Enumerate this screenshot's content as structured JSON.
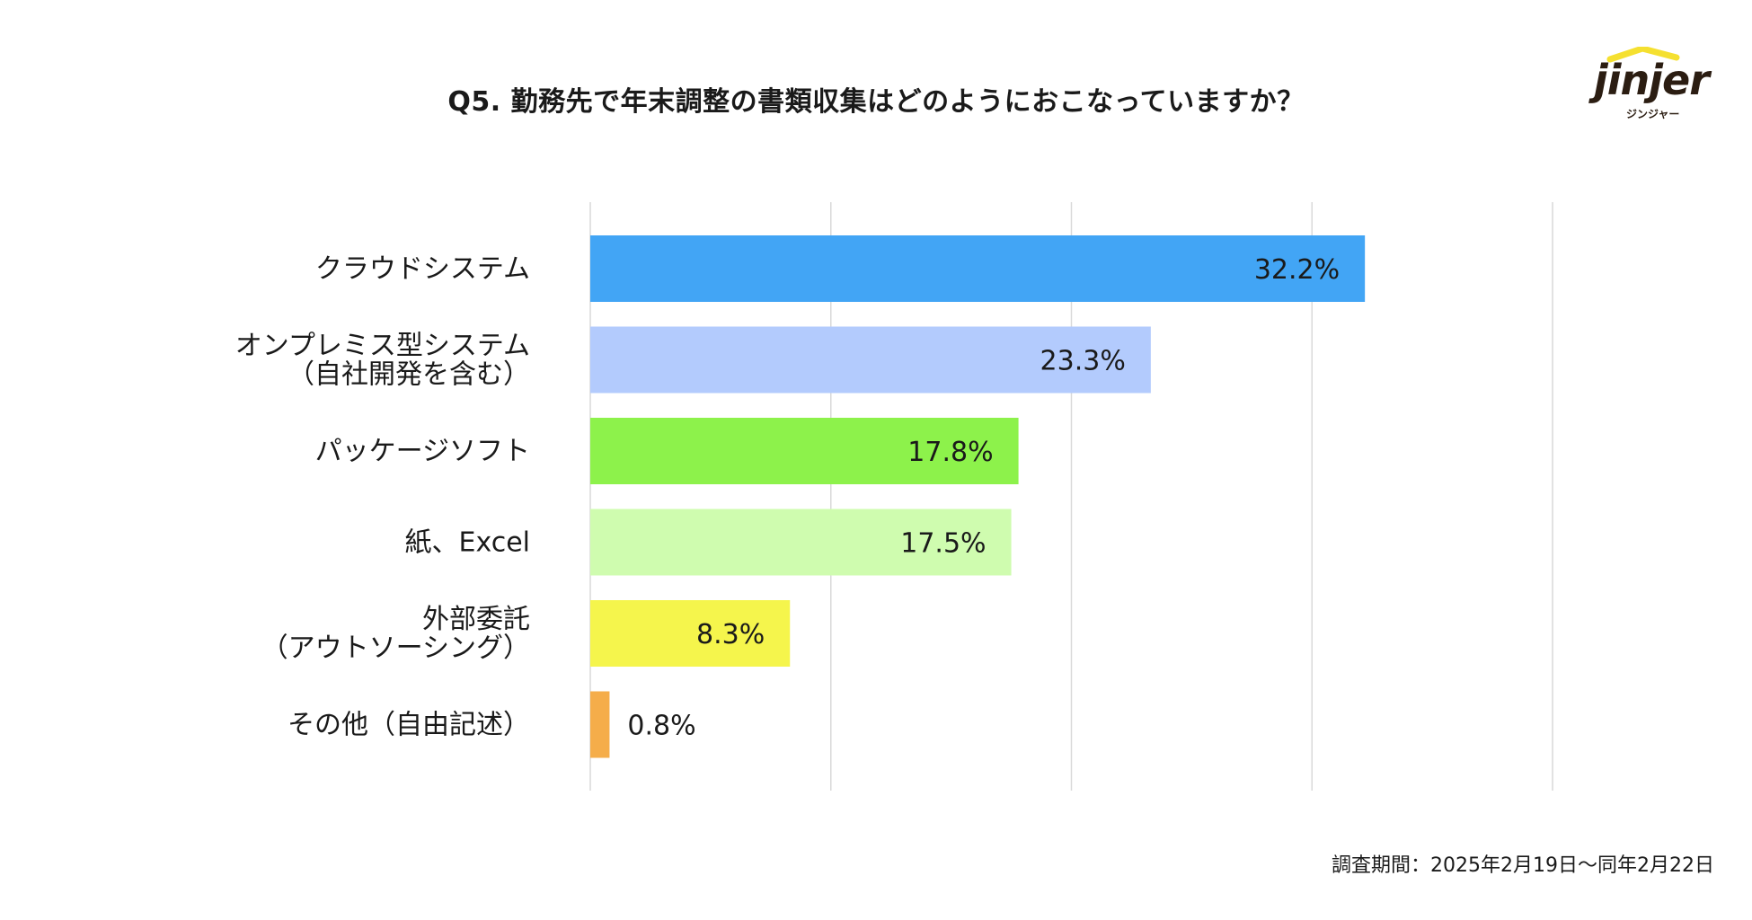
{
  "title": "Q5. 勤務先で年末調整の書類収集はどのようにおこなっていますか？",
  "logo": {
    "brand": "jinjer",
    "subtitle": "ジンジャー"
  },
  "footnote": "調査期間：2025年2月19日〜同年2月22日",
  "chart_data": {
    "type": "bar",
    "orientation": "horizontal",
    "title": "Q5. 勤務先で年末調整の書類収集はどのようにおこなっていますか？",
    "categories": [
      [
        "クラウドシステム"
      ],
      [
        "オンプレミス型システム",
        "（自社開発を含む）"
      ],
      [
        "パッケージソフト"
      ],
      [
        "紙、Excel"
      ],
      [
        "外部委託",
        "（アウトソーシング）"
      ],
      [
        "その他（自由記述）"
      ]
    ],
    "values": [
      32.2,
      23.3,
      17.8,
      17.5,
      8.3,
      0.8
    ],
    "value_labels": [
      "32.2%",
      "23.3%",
      "17.8%",
      "17.5%",
      "8.3%",
      "0.8%"
    ],
    "colors": [
      "#42a5f5",
      "#b3cbfd",
      "#8df24b",
      "#cffcaf",
      "#f5f54c",
      "#f5ad4a"
    ],
    "xlim": [
      0,
      40
    ],
    "gridlines": [
      0,
      10,
      20,
      30,
      40
    ],
    "grid": true,
    "xlabel": "",
    "ylabel": ""
  }
}
